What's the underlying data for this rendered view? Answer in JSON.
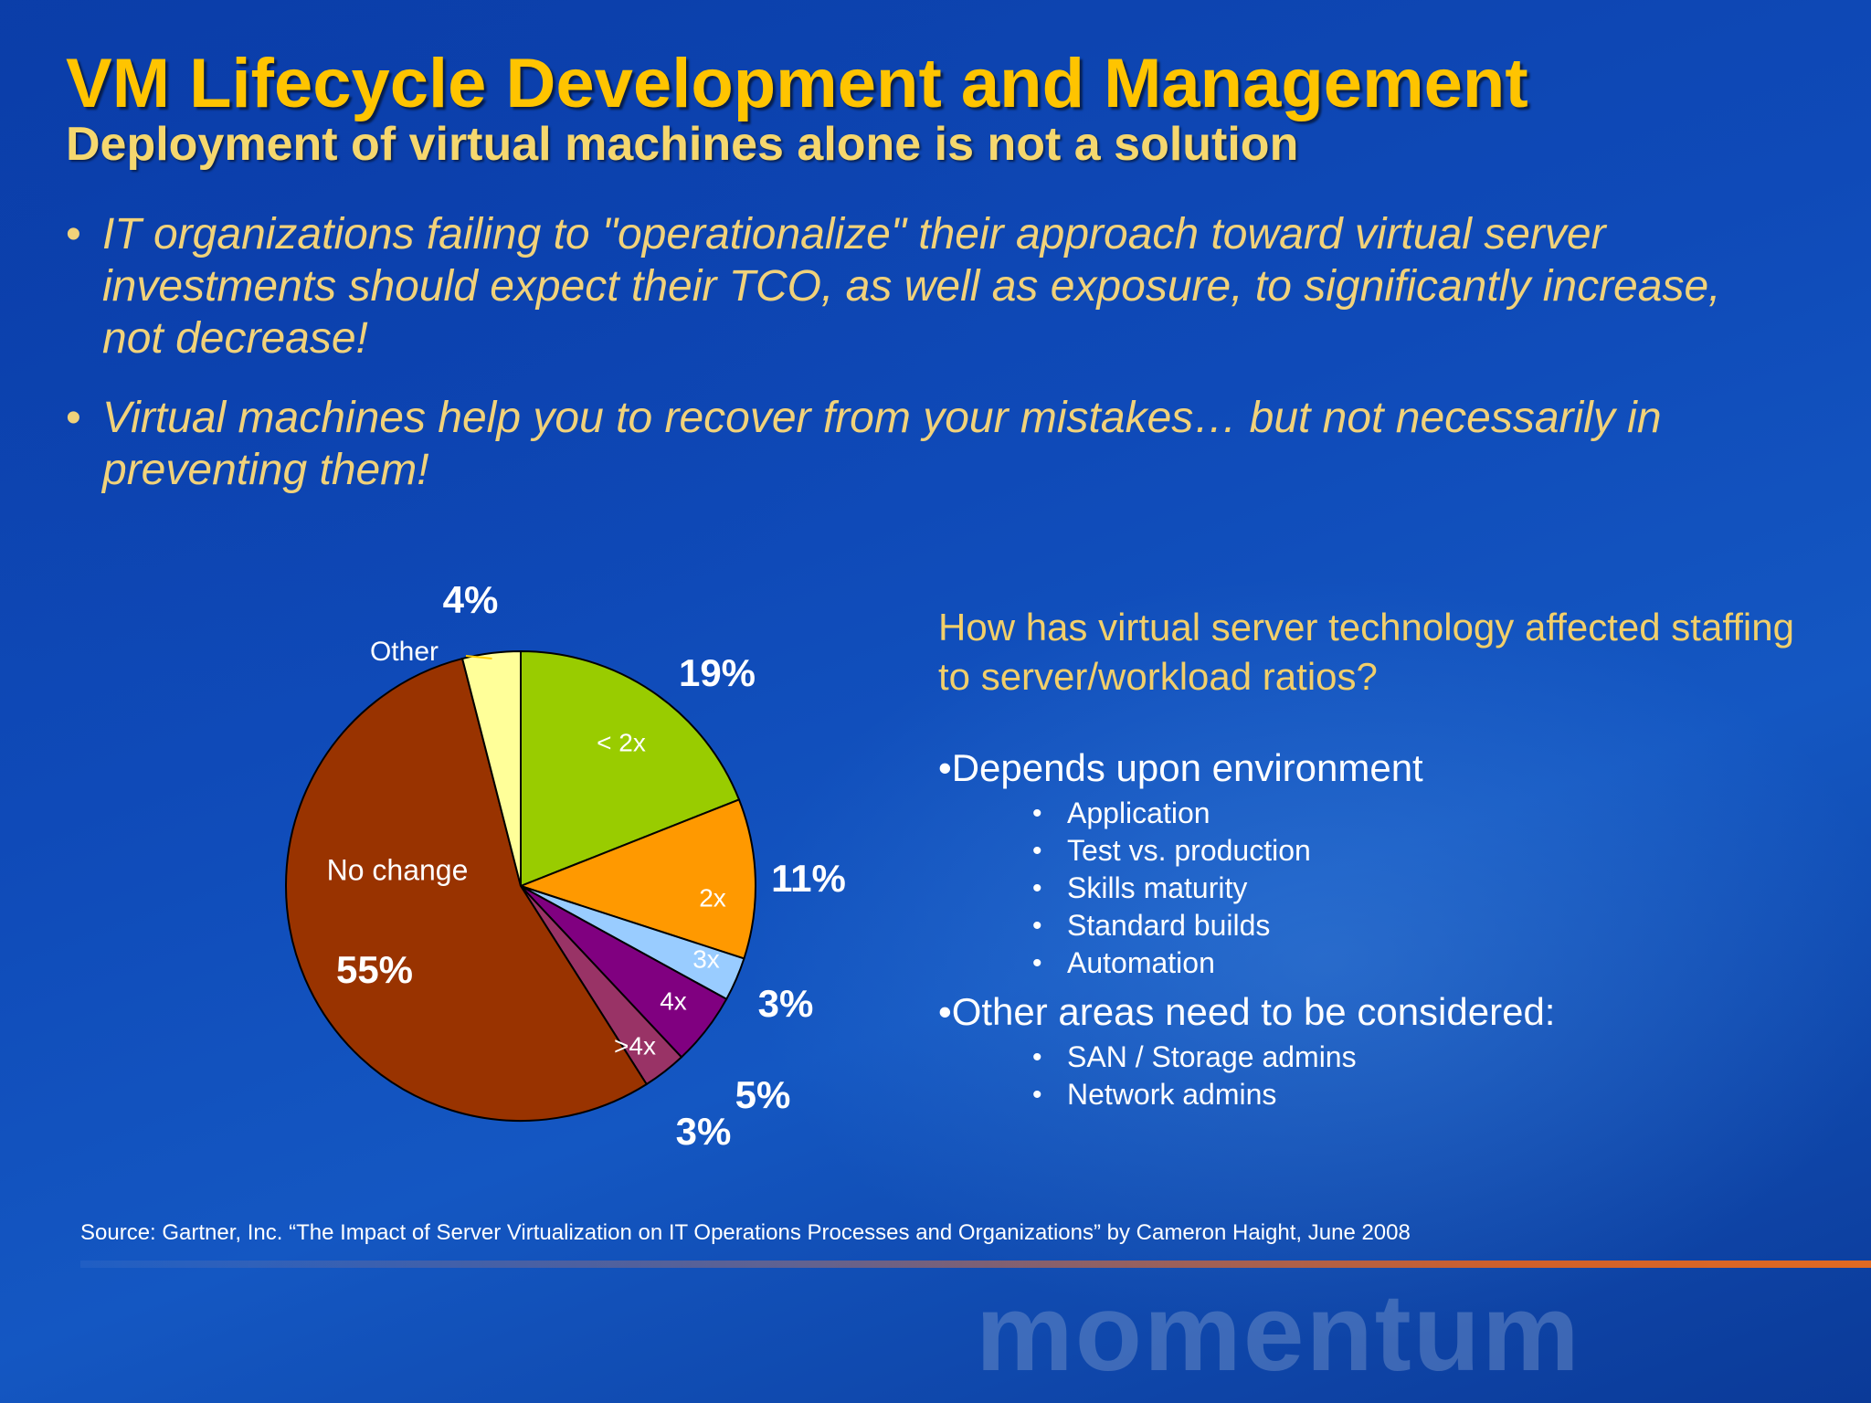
{
  "slide": {
    "title": "VM Lifecycle Development and Management",
    "subtitle": "Deployment of virtual machines alone is not a solution",
    "bullets": [
      "IT organizations failing to \"operationalize\" their approach toward virtual server investments should expect their TCO, as well as exposure, to significantly increase, not decrease!",
      "Virtual machines help you to recover from your mistakes… but not necessarily in preventing them!"
    ],
    "bullet_glyph": "•"
  },
  "panel": {
    "question": "How has virtual server technology affected staffing to server/workload ratios?",
    "point1": "•Depends upon environment",
    "point1_items": [
      "Application",
      "Test vs. production",
      "Skills maturity",
      "Standard builds",
      "Automation"
    ],
    "point2": "•Other areas need to be considered:",
    "point2_items": [
      "SAN / Storage admins",
      "Network admins"
    ],
    "sub_glyph": "•"
  },
  "source": "Source: Gartner, Inc. “The Impact of Server Virtualization on IT Operations Processes and Organizations” by Cameron Haight, June 2008",
  "watermark": "momentum",
  "colors": {
    "title": "#ffc400",
    "subtitle": "#f5d76e",
    "bullet_text": "#f1d27a",
    "background": "#1050b8"
  },
  "chart_data": {
    "type": "pie",
    "slices": [
      {
        "label": "< 2x",
        "percent_label": "19%",
        "value": 19,
        "color": "#99cc00"
      },
      {
        "label": "2x",
        "percent_label": "11%",
        "value": 11,
        "color": "#ff9900"
      },
      {
        "label": "3x",
        "percent_label": "3%",
        "value": 3,
        "color": "#99ccff"
      },
      {
        "label": "4x",
        "percent_label": "5%",
        "value": 5,
        "color": "#800080"
      },
      {
        "label": ">4x",
        "percent_label": "3%",
        "value": 3,
        "color": "#993366"
      },
      {
        "label": "No change",
        "percent_label": "55%",
        "value": 55,
        "color": "#993300"
      },
      {
        "label": "Other",
        "percent_label": "4%",
        "value": 4,
        "color": "#ffff99"
      }
    ],
    "start": "12 o'clock",
    "direction": "clockwise"
  }
}
